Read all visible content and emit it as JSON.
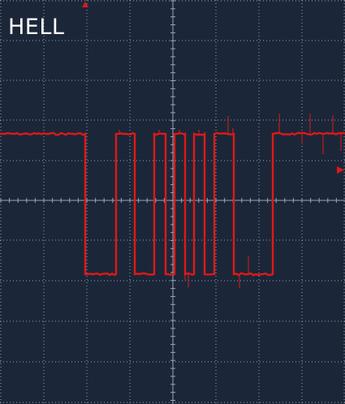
{
  "screen": {
    "label": "HELL"
  },
  "colors": {
    "background": "#1b2738",
    "grid_major": "#9aa6b5",
    "grid_minor": "#9aa6b5",
    "trace": "#e01818",
    "marker": "#e01818",
    "label": "#ffffff"
  },
  "markers": {
    "trigger_position": "top",
    "trigger_level": "right"
  }
}
